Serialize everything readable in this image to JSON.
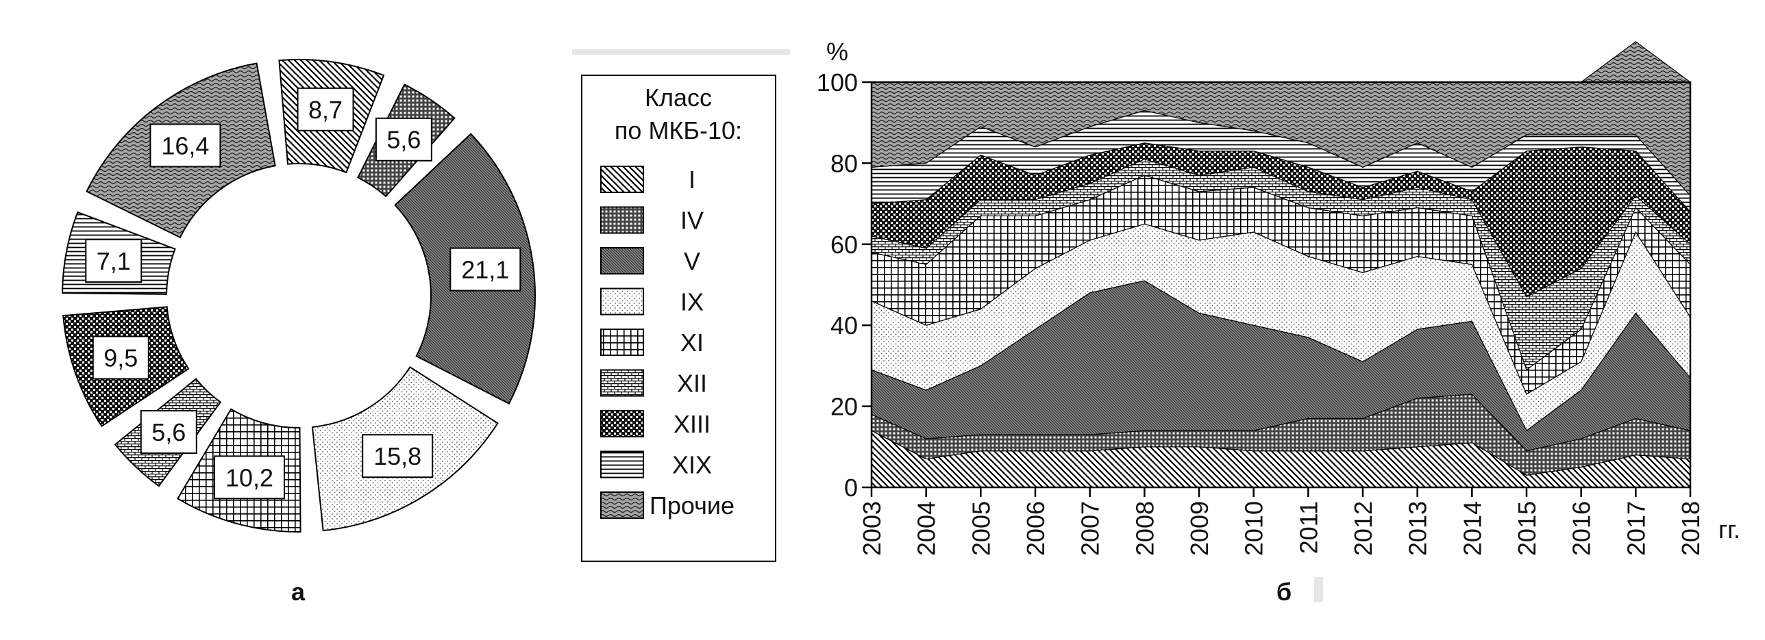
{
  "legend": {
    "title_line1": "Класс",
    "title_line2": "по МКБ-10:",
    "items": [
      {
        "label": "I",
        "pattern": "diag-right"
      },
      {
        "label": "IV",
        "pattern": "fine-grid"
      },
      {
        "label": "V",
        "pattern": "diag-dense"
      },
      {
        "label": "IX",
        "pattern": "dots"
      },
      {
        "label": "XI",
        "pattern": "grid"
      },
      {
        "label": "XII",
        "pattern": "brick"
      },
      {
        "label": "XIII",
        "pattern": "checker"
      },
      {
        "label": "XIX",
        "pattern": "horizontal"
      },
      {
        "label": "Прочие",
        "pattern": "wave"
      }
    ]
  },
  "chart_data": [
    {
      "type": "pie",
      "panel_label": "а",
      "values": [
        8.7,
        5.6,
        21.1,
        15.8,
        10.2,
        5.6,
        9.5,
        7.1,
        16.4
      ],
      "value_labels": [
        "8,7",
        "5,6",
        "21,1",
        "15,8",
        "10,2",
        "5,6",
        "9,5",
        "7,1",
        "16,4"
      ],
      "classes": [
        "I",
        "IV",
        "V",
        "IX",
        "XI",
        "XII",
        "XIII",
        "XIX",
        "Прочие"
      ]
    },
    {
      "type": "area",
      "panel_label": "б",
      "stacked": true,
      "ylabel": "%",
      "xunit": "гг.",
      "ylim": [
        0,
        100
      ],
      "yticks": [
        0,
        20,
        40,
        60,
        80,
        100
      ],
      "x": [
        "2003",
        "2004",
        "2005",
        "2006",
        "2007",
        "2008",
        "2009",
        "2010",
        "2011",
        "2012",
        "2013",
        "2014",
        "2015",
        "2016",
        "2017",
        "2018"
      ],
      "series": [
        {
          "name": "I",
          "values": [
            14,
            7,
            9,
            9,
            9,
            10,
            10,
            9,
            9,
            9,
            10,
            11,
            3,
            5,
            8,
            7
          ]
        },
        {
          "name": "IV",
          "values": [
            4,
            5,
            4,
            4,
            4,
            4,
            4,
            5,
            8,
            8,
            12,
            12,
            6,
            7,
            9,
            7
          ]
        },
        {
          "name": "V",
          "values": [
            11,
            12,
            17,
            26,
            35,
            37,
            29,
            26,
            20,
            14,
            17,
            18,
            5,
            12,
            26,
            13
          ]
        },
        {
          "name": "IX",
          "values": [
            17,
            16,
            14,
            15,
            13,
            14,
            18,
            23,
            20,
            22,
            18,
            14,
            9,
            7,
            20,
            15
          ]
        },
        {
          "name": "XI",
          "values": [
            12,
            15,
            23,
            13,
            10,
            12,
            12,
            11,
            12,
            14,
            12,
            12,
            6,
            8,
            6,
            13
          ]
        },
        {
          "name": "XII",
          "values": [
            4,
            4,
            4,
            4,
            4,
            4,
            4,
            5,
            4,
            4,
            5,
            4,
            18,
            15,
            3,
            5
          ]
        },
        {
          "name": "XIII",
          "values": [
            8,
            12,
            11,
            6,
            7,
            4,
            6,
            4,
            6,
            3,
            4,
            2,
            36,
            30,
            11,
            8
          ]
        },
        {
          "name": "XIX",
          "values": [
            9,
            9,
            7,
            7,
            7,
            8,
            7,
            5,
            6,
            5,
            7,
            6,
            4,
            3,
            4,
            4
          ]
        },
        {
          "name": "Прочие",
          "values": [
            21,
            20,
            11,
            16,
            11,
            7,
            10,
            12,
            15,
            21,
            15,
            21,
            13,
            13,
            23,
            28
          ]
        }
      ]
    }
  ]
}
